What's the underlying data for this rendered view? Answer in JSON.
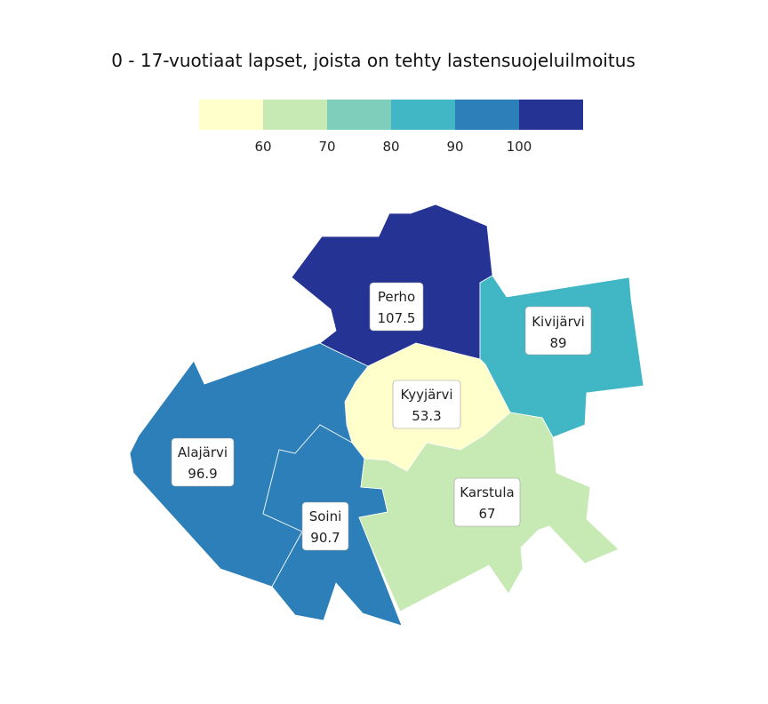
{
  "title": "0 - 17-vuotiaat lapset, joista on tehty lastensuojeluilmoitus",
  "legend": {
    "bins": [
      {
        "color": "#ffffcc"
      },
      {
        "color": "#c7e9b4"
      },
      {
        "color": "#7fcdbb"
      },
      {
        "color": "#41b6c4"
      },
      {
        "color": "#2c7fb8"
      },
      {
        "color": "#253494"
      }
    ],
    "ticks": [
      "60",
      "70",
      "80",
      "90",
      "100"
    ]
  },
  "regions": [
    {
      "name": "Perho",
      "value": "107.5",
      "color": "#253494"
    },
    {
      "name": "Kivijärvi",
      "value": "89",
      "color": "#41b6c4"
    },
    {
      "name": "Kyyjärvi",
      "value": "53.3",
      "color": "#ffffcc"
    },
    {
      "name": "Alajärvi",
      "value": "96.9",
      "color": "#2c7fb8"
    },
    {
      "name": "Karstula",
      "value": "67",
      "color": "#c7e9b4"
    },
    {
      "name": "Soini",
      "value": "90.7",
      "color": "#2c7fb8"
    }
  ]
}
